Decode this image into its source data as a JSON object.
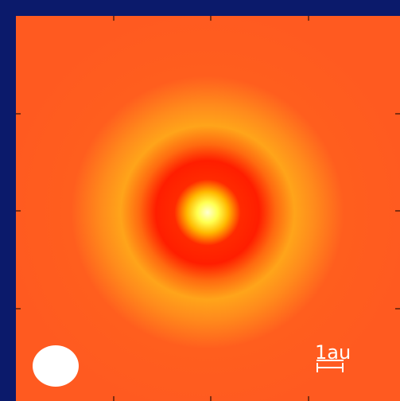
{
  "scale_bar": {
    "label": "1au"
  }
}
